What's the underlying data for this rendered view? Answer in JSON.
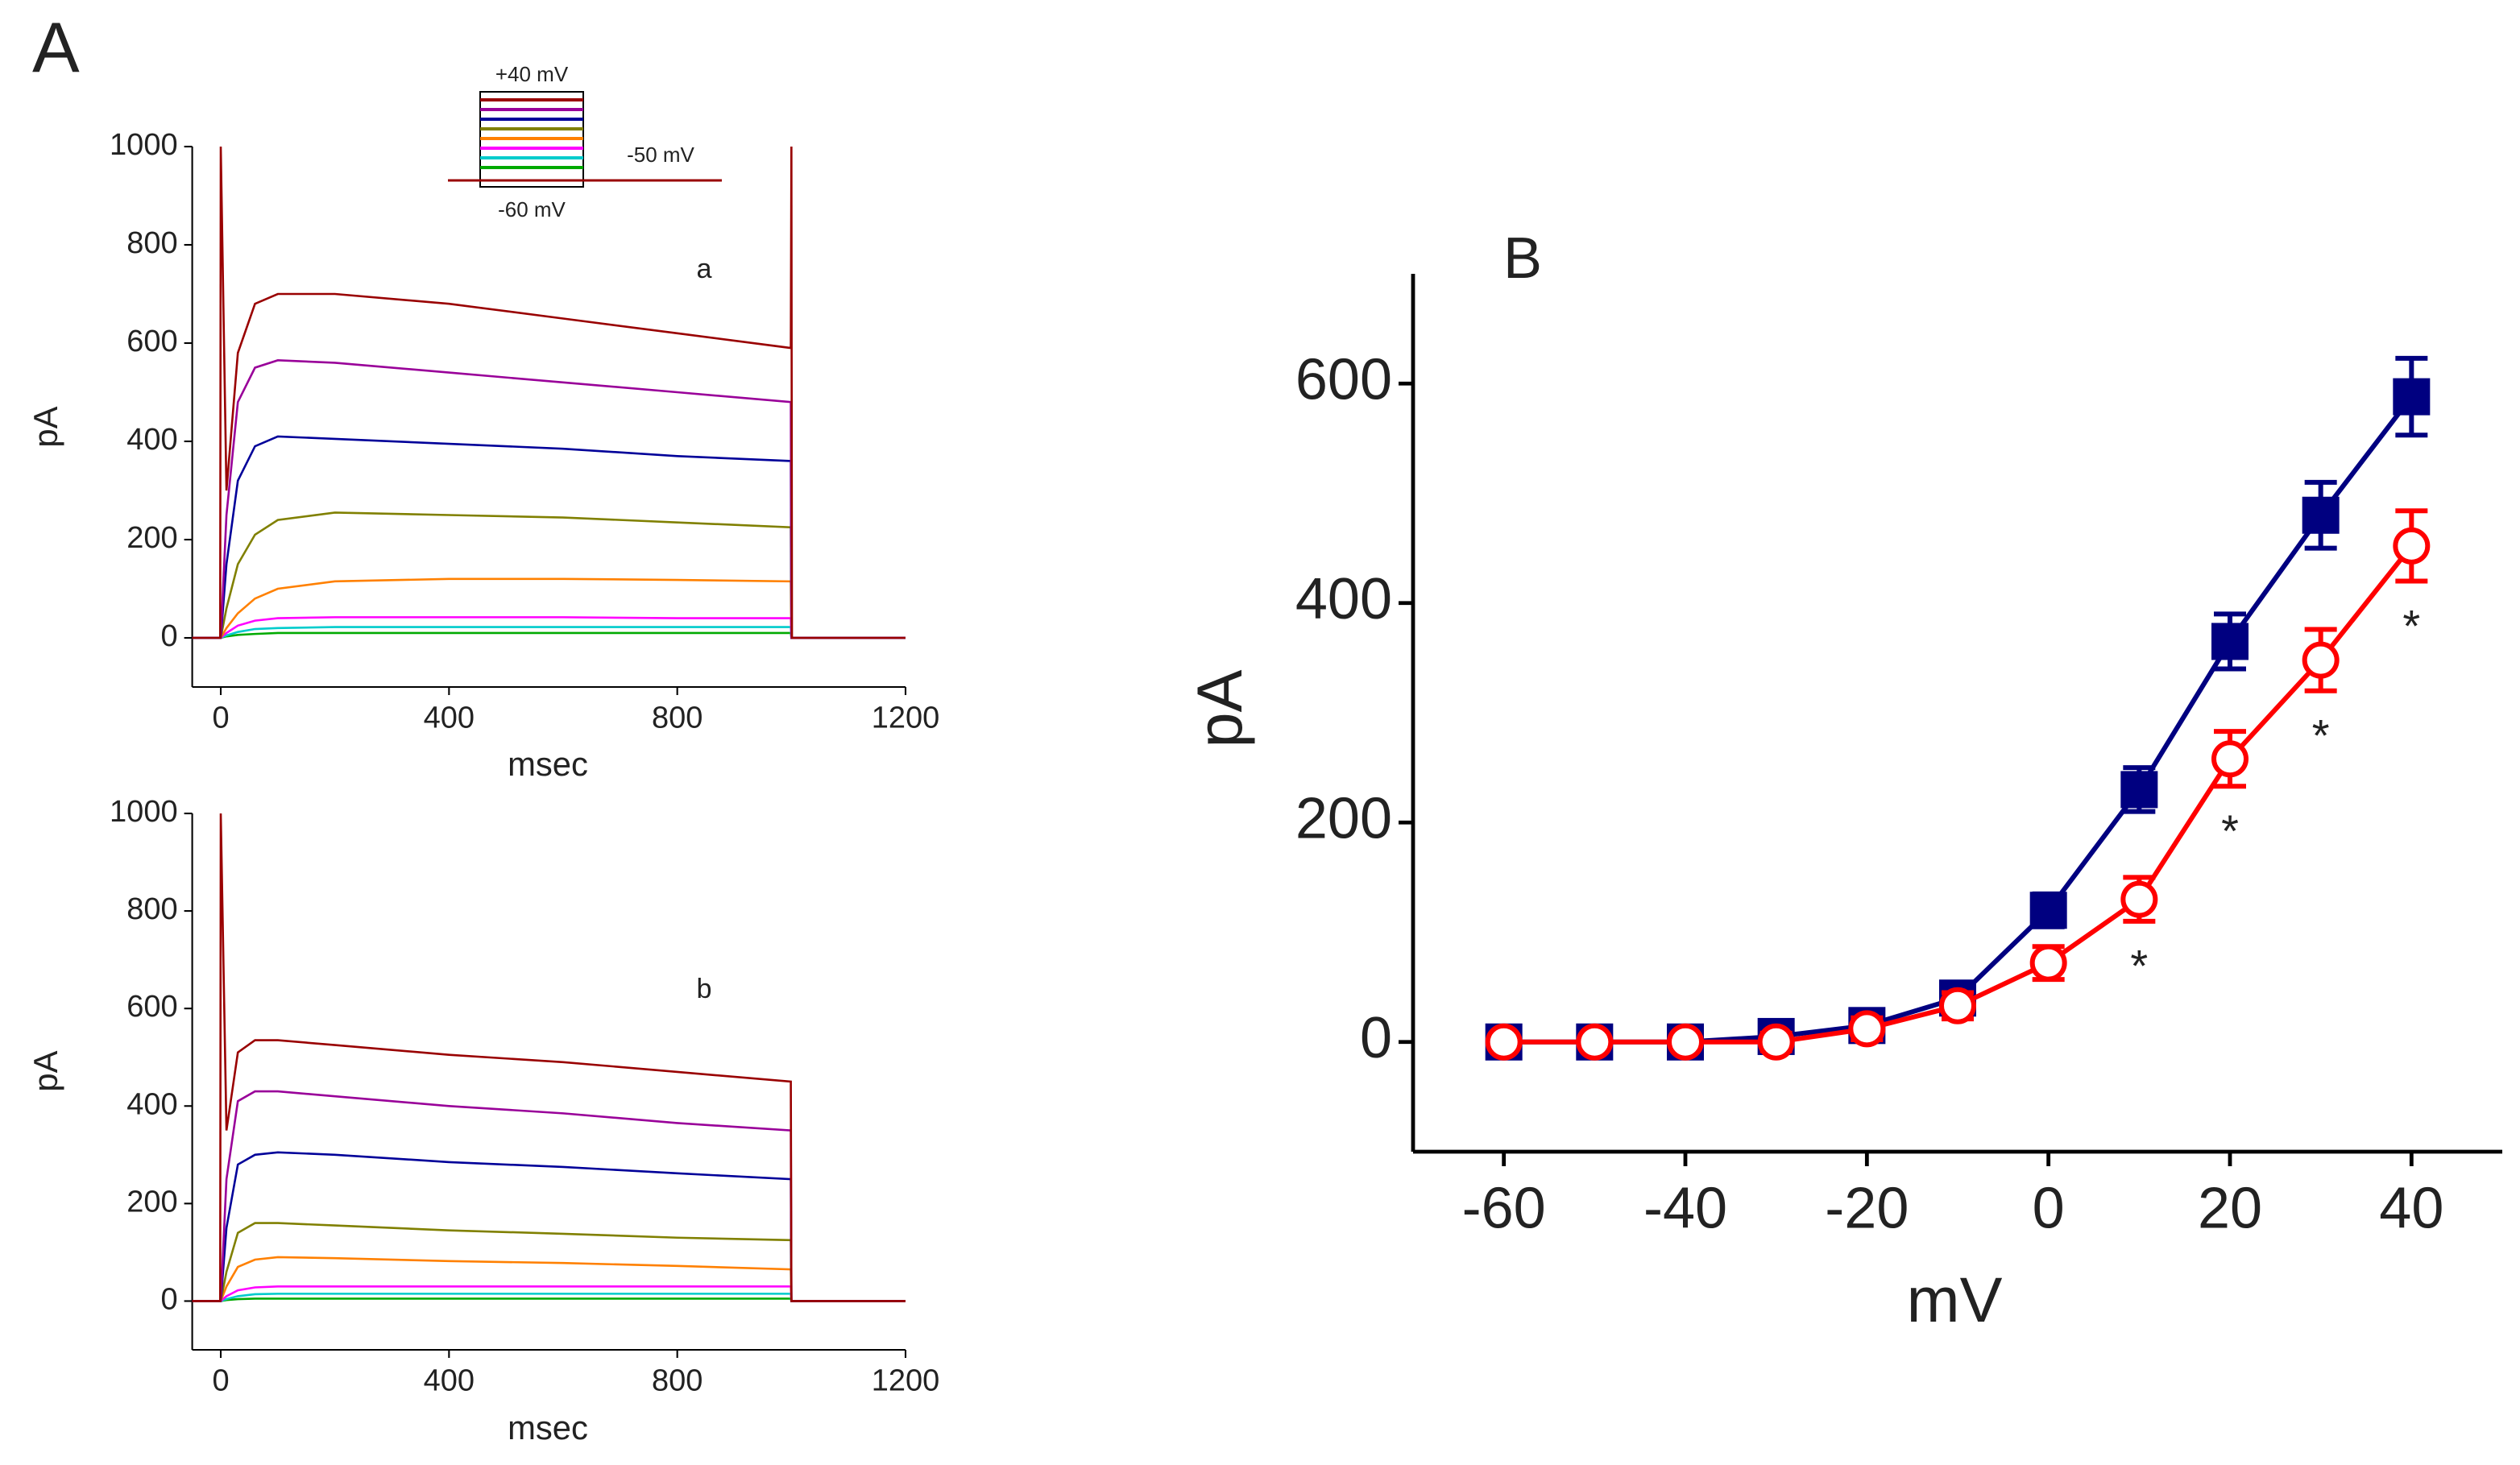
{
  "figure_label": "A",
  "inset": {
    "top_label": "+40 mV",
    "hold_label": "-50 mV",
    "bottom_label": "-60 mV"
  },
  "chart_data": [
    {
      "type": "line",
      "annotation": "a",
      "xlabel": "msec",
      "ylabel": "pA",
      "x": [
        -50,
        -1,
        0,
        10,
        30,
        60,
        100,
        200,
        400,
        600,
        800,
        999,
        1000,
        1001,
        1200
      ],
      "xlim": [
        -50,
        1200
      ],
      "xticks": [
        0,
        400,
        800,
        1200
      ],
      "ylim": [
        -100,
        1000
      ],
      "yticks": [
        0,
        200,
        400,
        600,
        800,
        1000
      ],
      "series": [
        {
          "color": "#00aa00",
          "values": [
            0,
            0,
            0,
            3,
            6,
            8,
            10,
            10,
            10,
            10,
            10,
            10,
            0,
            0,
            0
          ]
        },
        {
          "color": "#00cccc",
          "values": [
            0,
            0,
            0,
            5,
            12,
            18,
            20,
            22,
            22,
            22,
            22,
            22,
            0,
            0,
            0
          ]
        },
        {
          "color": "#ff00ff",
          "values": [
            0,
            0,
            0,
            10,
            25,
            35,
            40,
            42,
            42,
            42,
            40,
            40,
            0,
            0,
            0
          ]
        },
        {
          "color": "#ff8000",
          "values": [
            0,
            0,
            0,
            20,
            50,
            80,
            100,
            115,
            120,
            120,
            118,
            115,
            0,
            0,
            0
          ]
        },
        {
          "color": "#808000",
          "values": [
            0,
            0,
            0,
            60,
            150,
            210,
            240,
            255,
            250,
            245,
            235,
            225,
            0,
            0,
            0
          ]
        },
        {
          "color": "#000099",
          "values": [
            0,
            0,
            0,
            150,
            320,
            390,
            410,
            405,
            395,
            385,
            370,
            360,
            0,
            0,
            0
          ]
        },
        {
          "color": "#990099",
          "values": [
            0,
            0,
            0,
            250,
            480,
            550,
            565,
            560,
            540,
            520,
            500,
            480,
            0,
            0,
            0
          ]
        },
        {
          "color": "#990000",
          "values": [
            0,
            0,
            1000,
            300,
            580,
            680,
            700,
            700,
            680,
            650,
            620,
            590,
            1000,
            0,
            0
          ]
        }
      ]
    },
    {
      "type": "line",
      "annotation": "b",
      "xlabel": "msec",
      "ylabel": "pA",
      "x": [
        -50,
        -1,
        0,
        10,
        30,
        60,
        100,
        200,
        400,
        600,
        800,
        999,
        1000,
        1001,
        1200
      ],
      "xlim": [
        -50,
        1200
      ],
      "xticks": [
        0,
        400,
        800,
        1200
      ],
      "ylim": [
        -100,
        1000
      ],
      "yticks": [
        0,
        200,
        400,
        600,
        800,
        1000
      ],
      "series": [
        {
          "color": "#00aa00",
          "values": [
            0,
            0,
            0,
            2,
            4,
            5,
            5,
            5,
            5,
            5,
            5,
            5,
            0,
            0,
            0
          ]
        },
        {
          "color": "#00cccc",
          "values": [
            0,
            0,
            0,
            4,
            10,
            14,
            15,
            15,
            15,
            15,
            15,
            15,
            0,
            0,
            0
          ]
        },
        {
          "color": "#ff00ff",
          "values": [
            0,
            0,
            0,
            10,
            22,
            28,
            30,
            30,
            30,
            30,
            30,
            30,
            0,
            0,
            0
          ]
        },
        {
          "color": "#ff8000",
          "values": [
            0,
            0,
            0,
            30,
            70,
            85,
            90,
            88,
            82,
            78,
            72,
            65,
            0,
            0,
            0
          ]
        },
        {
          "color": "#808000",
          "values": [
            0,
            0,
            0,
            60,
            140,
            160,
            160,
            155,
            145,
            138,
            130,
            125,
            0,
            0,
            0
          ]
        },
        {
          "color": "#000099",
          "values": [
            0,
            0,
            0,
            150,
            280,
            300,
            305,
            300,
            285,
            275,
            262,
            250,
            0,
            0,
            0
          ]
        },
        {
          "color": "#990099",
          "values": [
            0,
            0,
            0,
            250,
            410,
            430,
            430,
            420,
            400,
            385,
            365,
            350,
            0,
            0,
            0
          ]
        },
        {
          "color": "#990000",
          "values": [
            0,
            0,
            1000,
            350,
            510,
            535,
            535,
            525,
            505,
            490,
            470,
            450,
            0,
            0,
            0
          ]
        }
      ]
    },
    {
      "type": "line",
      "title": "B",
      "xlabel": "mV",
      "ylabel": "pA",
      "x": [
        -60,
        -50,
        -40,
        -30,
        -20,
        -10,
        0,
        10,
        20,
        30,
        40
      ],
      "xlim": [
        -70,
        50
      ],
      "xticks": [
        -60,
        -40,
        -20,
        0,
        20,
        40
      ],
      "ylim": [
        -100,
        700
      ],
      "yticks": [
        0,
        200,
        400,
        600
      ],
      "series": [
        {
          "color": "#000080",
          "marker": "square",
          "filled": true,
          "values": [
            0,
            0,
            0,
            5,
            15,
            40,
            120,
            230,
            365,
            480,
            588
          ],
          "errors": [
            6,
            6,
            6,
            8,
            10,
            12,
            15,
            20,
            25,
            30,
            35
          ]
        },
        {
          "color": "#ff0000",
          "marker": "circle",
          "filled": false,
          "values": [
            0,
            0,
            0,
            0,
            12,
            33,
            72,
            130,
            258,
            348,
            452
          ],
          "errors": [
            6,
            6,
            6,
            8,
            10,
            12,
            15,
            20,
            25,
            28,
            32
          ]
        }
      ],
      "annotations": [
        {
          "text": "*",
          "x": 10
        },
        {
          "text": "*",
          "x": 20
        },
        {
          "text": "*",
          "x": 30
        },
        {
          "text": "*",
          "x": 40
        }
      ]
    }
  ]
}
